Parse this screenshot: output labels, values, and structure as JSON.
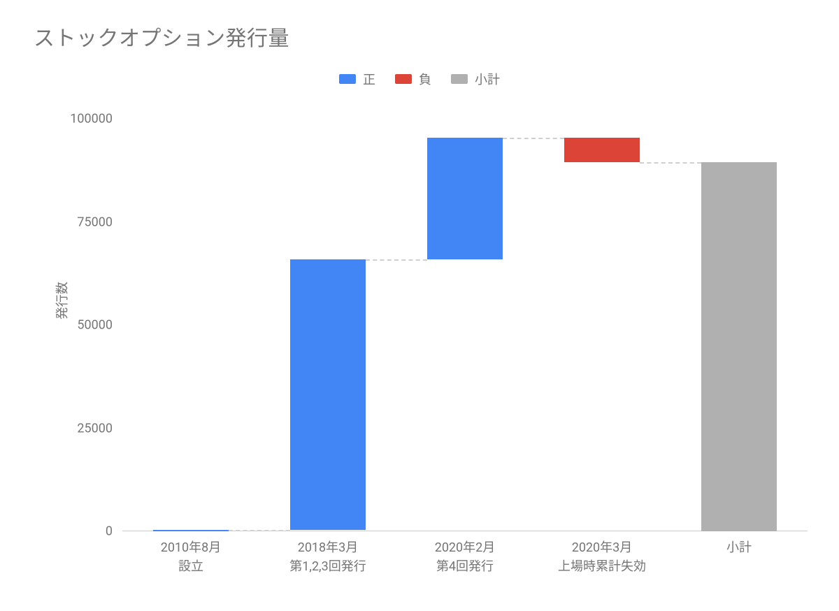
{
  "chart": {
    "type": "waterfall",
    "title": "ストックオプション発行量",
    "title_fontsize": 30,
    "title_color": "#757575",
    "background_color": "#ffffff",
    "y_axis": {
      "label": "発行数",
      "label_fontsize": 18,
      "min": 0,
      "max": 100000,
      "tick_step": 25000,
      "ticks": [
        0,
        25000,
        50000,
        75000,
        100000
      ],
      "tick_color": "#757575",
      "tick_fontsize": 18
    },
    "x_axis": {
      "label_fontsize": 18,
      "label_color": "#757575"
    },
    "legend": {
      "position": "top-center",
      "fontsize": 18,
      "label_color": "#757575",
      "items": [
        {
          "key": "positive",
          "label": "正",
          "color": "#4285f4"
        },
        {
          "key": "negative",
          "label": "負",
          "color": "#db4437"
        },
        {
          "key": "subtotal",
          "label": "小計",
          "color": "#b0b0b0"
        }
      ]
    },
    "bar_width_ratio": 0.55,
    "connector_color": "#d0d0d0",
    "connector_dash": "4 4",
    "categories": [
      {
        "label_line1": "2010年8月",
        "label_line2": "設立",
        "type": "positive",
        "delta": 300,
        "start": 0,
        "end": 300
      },
      {
        "label_line1": "2018年3月",
        "label_line2": "第1,2,3回発行",
        "type": "positive",
        "delta": 65700,
        "start": 300,
        "end": 66000
      },
      {
        "label_line1": "2020年2月",
        "label_line2": "第4回発行",
        "type": "positive",
        "delta": 29500,
        "start": 66000,
        "end": 95500
      },
      {
        "label_line1": "2020年3月",
        "label_line2": "上場時累計失効",
        "type": "negative",
        "delta": -6000,
        "start": 95500,
        "end": 89500
      },
      {
        "label_line1": "小計",
        "label_line2": "",
        "type": "subtotal",
        "delta": 89500,
        "start": 0,
        "end": 89500
      }
    ]
  }
}
